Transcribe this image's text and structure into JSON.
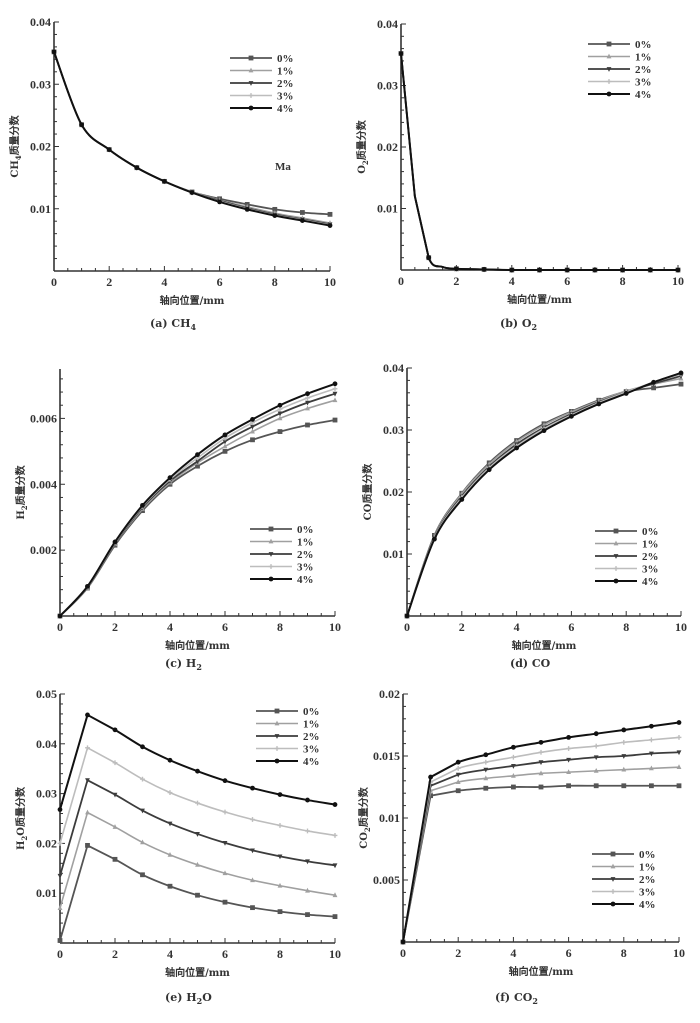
{
  "colors": {
    "0%": "#555555",
    "1%": "#a0a0a0",
    "2%": "#3c3c3c",
    "3%": "#bdbdbd",
    "4%": "#111111",
    "axis": "#333333"
  },
  "chart_data": [
    {
      "id": "a",
      "type": "line",
      "caption": "(a) CH",
      "caption_sub": "4",
      "xlabel": "轴向位置/mm",
      "ylabel_pre": "CH",
      "ylabel_sub": "4",
      "ylabel_post": "质量分数",
      "xlim": [
        0,
        10
      ],
      "ylim": [
        0,
        0.04
      ],
      "xticks": [
        "0",
        "2",
        "4",
        "6",
        "8",
        "10"
      ],
      "yticks": [
        "0.01",
        "0.02",
        "0.03",
        "0.04"
      ],
      "ytick_values": [
        0.01,
        0.02,
        0.03,
        0.04
      ],
      "legend": [
        "0%",
        "1%",
        "2%",
        "3%",
        "4%"
      ],
      "legend_position": "top-right",
      "annotation": "Ma",
      "x": [
        0,
        1,
        2,
        3,
        4,
        5,
        6,
        7,
        8,
        9,
        10
      ],
      "series": [
        {
          "name": "0%",
          "values": [
            0.0352,
            0.0235,
            0.0195,
            0.0166,
            0.0144,
            0.0127,
            0.0116,
            0.0107,
            0.0099,
            0.0094,
            0.0091
          ]
        },
        {
          "name": "1%",
          "values": [
            0.0352,
            0.0235,
            0.0195,
            0.0166,
            0.0144,
            0.0127,
            0.0114,
            0.0103,
            0.0093,
            0.0085,
            0.0077
          ]
        },
        {
          "name": "2%",
          "values": [
            0.0352,
            0.0235,
            0.0195,
            0.0166,
            0.0144,
            0.0126,
            0.0113,
            0.0101,
            0.0091,
            0.0083,
            0.0075
          ]
        },
        {
          "name": "3%",
          "values": [
            0.0352,
            0.0235,
            0.0195,
            0.0166,
            0.0144,
            0.0126,
            0.0112,
            0.01,
            0.009,
            0.0082,
            0.0074
          ]
        },
        {
          "name": "4%",
          "values": [
            0.0352,
            0.0235,
            0.0195,
            0.0166,
            0.0144,
            0.0126,
            0.0111,
            0.0099,
            0.0089,
            0.0081,
            0.0073
          ]
        }
      ]
    },
    {
      "id": "b",
      "type": "line",
      "caption": "(b) O",
      "caption_sub": "2",
      "xlabel": "轴向位置/mm",
      "ylabel_pre": "O",
      "ylabel_sub": "2",
      "ylabel_post": "质量分数",
      "xlim": [
        0,
        10
      ],
      "ylim": [
        0,
        0.04
      ],
      "xticks": [
        "0",
        "2",
        "4",
        "6",
        "8",
        "10"
      ],
      "yticks": [
        "0.01",
        "0.02",
        "0.03",
        "0.04"
      ],
      "ytick_values": [
        0.01,
        0.02,
        0.03,
        0.04
      ],
      "legend": [
        "0%",
        "1%",
        "2%",
        "3%",
        "4%"
      ],
      "legend_position": "top-right",
      "x": [
        0,
        0.5,
        1,
        1.5,
        2,
        3,
        4,
        5,
        6,
        7,
        8,
        9,
        10
      ],
      "series": [
        {
          "name": "0%",
          "values": [
            0.0352,
            0.012,
            0.002,
            0.0005,
            0.0002,
            0.0001,
            0,
            0,
            0,
            0,
            0,
            0,
            0
          ]
        },
        {
          "name": "1%",
          "values": [
            0.0352,
            0.012,
            0.002,
            0.0005,
            0.0002,
            0.0001,
            0,
            0,
            0,
            0,
            0,
            0,
            0
          ]
        },
        {
          "name": "2%",
          "values": [
            0.0352,
            0.012,
            0.002,
            0.0005,
            0.0002,
            0.0001,
            0,
            0,
            0,
            0,
            0,
            0,
            0
          ]
        },
        {
          "name": "3%",
          "values": [
            0.0352,
            0.012,
            0.002,
            0.0005,
            0.0002,
            0.0001,
            0,
            0,
            0,
            0,
            0,
            0,
            0
          ]
        },
        {
          "name": "4%",
          "values": [
            0.0352,
            0.012,
            0.002,
            0.0005,
            0.0002,
            0.0001,
            0,
            0,
            0,
            0,
            0,
            0,
            0
          ]
        }
      ]
    },
    {
      "id": "c",
      "type": "line",
      "caption": "(c) H",
      "caption_sub": "2",
      "xlabel": "轴向位置/mm",
      "ylabel_pre": "H",
      "ylabel_sub": "2",
      "ylabel_post": "质量分数",
      "xlim": [
        0,
        10
      ],
      "ylim": [
        0,
        0.0075
      ],
      "xticks": [
        "0",
        "2",
        "4",
        "6",
        "8",
        "10"
      ],
      "yticks": [
        "0.002",
        "0.004",
        "0.006"
      ],
      "ytick_values": [
        0.002,
        0.004,
        0.006
      ],
      "legend": [
        "0%",
        "1%",
        "2%",
        "3%",
        "4%"
      ],
      "legend_position": "lower-right",
      "x": [
        0,
        1,
        2,
        3,
        4,
        5,
        6,
        7,
        8,
        9,
        10
      ],
      "series": [
        {
          "name": "0%",
          "values": [
            0,
            0.00085,
            0.00215,
            0.0032,
            0.004,
            0.00455,
            0.005,
            0.00535,
            0.0056,
            0.0058,
            0.00595
          ]
        },
        {
          "name": "1%",
          "values": [
            0,
            0.00085,
            0.00218,
            0.00325,
            0.00405,
            0.00465,
            0.00515,
            0.0056,
            0.006,
            0.0063,
            0.00655
          ]
        },
        {
          "name": "2%",
          "values": [
            0,
            0.00087,
            0.0022,
            0.0033,
            0.0041,
            0.0047,
            0.0053,
            0.00575,
            0.00615,
            0.00648,
            0.00675
          ]
        },
        {
          "name": "3%",
          "values": [
            0,
            0.00088,
            0.00222,
            0.00333,
            0.00415,
            0.0048,
            0.0054,
            0.00587,
            0.00628,
            0.00662,
            0.0069
          ]
        },
        {
          "name": "4%",
          "values": [
            0,
            0.0009,
            0.00225,
            0.00336,
            0.0042,
            0.0049,
            0.0055,
            0.00597,
            0.0064,
            0.00675,
            0.00705
          ]
        }
      ]
    },
    {
      "id": "d",
      "type": "line",
      "caption": "(d) CO",
      "caption_sub": "",
      "xlabel": "轴向位置/mm",
      "ylabel_pre": "CO",
      "ylabel_sub": "",
      "ylabel_post": "质量分数",
      "xlim": [
        0,
        10
      ],
      "ylim": [
        0,
        0.04
      ],
      "xticks": [
        "0",
        "2",
        "4",
        "6",
        "8",
        "10"
      ],
      "yticks": [
        "0.01",
        "0.02",
        "0.03",
        "0.04"
      ],
      "ytick_values": [
        0.01,
        0.02,
        0.03,
        0.04
      ],
      "legend": [
        "0%",
        "1%",
        "2%",
        "3%",
        "4%"
      ],
      "legend_position": "lower-right",
      "x": [
        0,
        1,
        2,
        3,
        4,
        5,
        6,
        7,
        8,
        9,
        10
      ],
      "series": [
        {
          "name": "0%",
          "values": [
            0,
            0.013,
            0.0198,
            0.0247,
            0.0283,
            0.031,
            0.033,
            0.0348,
            0.0362,
            0.0368,
            0.0374
          ]
        },
        {
          "name": "1%",
          "values": [
            0,
            0.0129,
            0.0197,
            0.0245,
            0.0281,
            0.0308,
            0.0329,
            0.0347,
            0.0363,
            0.0374,
            0.0383
          ]
        },
        {
          "name": "2%",
          "values": [
            0,
            0.0127,
            0.0193,
            0.0241,
            0.0277,
            0.0304,
            0.0326,
            0.0345,
            0.0361,
            0.0375,
            0.0387
          ]
        },
        {
          "name": "3%",
          "values": [
            0,
            0.0126,
            0.0191,
            0.0239,
            0.0274,
            0.0302,
            0.0324,
            0.0344,
            0.0361,
            0.0377,
            0.039
          ]
        },
        {
          "name": "4%",
          "values": [
            0,
            0.0124,
            0.0188,
            0.0236,
            0.0271,
            0.0299,
            0.0322,
            0.0342,
            0.0359,
            0.0377,
            0.0392
          ]
        }
      ]
    },
    {
      "id": "e",
      "type": "line",
      "caption": "(e) H",
      "caption_sub": "2",
      "caption_post": "O",
      "xlabel": "轴向位置/mm",
      "ylabel_pre": "H",
      "ylabel_sub": "2",
      "ylabel_post": "O质量分数",
      "xlim": [
        0,
        10
      ],
      "ylim": [
        0,
        0.05
      ],
      "xticks": [
        "0",
        "2",
        "4",
        "6",
        "8",
        "10"
      ],
      "yticks": [
        "0.01",
        "0.02",
        "0.03",
        "0.04",
        "0.05"
      ],
      "ytick_values": [
        0.01,
        0.02,
        0.03,
        0.04,
        0.05
      ],
      "legend": [
        "0%",
        "1%",
        "2%",
        "3%",
        "4%"
      ],
      "legend_position": "top-right",
      "x": [
        0,
        1,
        2,
        3,
        4,
        5,
        6,
        7,
        8,
        9,
        10
      ],
      "series": [
        {
          "name": "0%",
          "values": [
            0.0005,
            0.0196,
            0.0168,
            0.0137,
            0.0114,
            0.0096,
            0.0082,
            0.0071,
            0.0063,
            0.0057,
            0.0053
          ]
        },
        {
          "name": "1%",
          "values": [
            0.007,
            0.0262,
            0.0233,
            0.0202,
            0.0177,
            0.0157,
            0.014,
            0.0126,
            0.0115,
            0.0105,
            0.0096
          ]
        },
        {
          "name": "2%",
          "values": [
            0.0135,
            0.0327,
            0.0298,
            0.0266,
            0.024,
            0.0219,
            0.0201,
            0.0186,
            0.0174,
            0.0164,
            0.0156
          ]
        },
        {
          "name": "3%",
          "values": [
            0.02,
            0.0392,
            0.0362,
            0.0329,
            0.0302,
            0.0281,
            0.0263,
            0.0248,
            0.0236,
            0.0225,
            0.0216
          ]
        },
        {
          "name": "4%",
          "values": [
            0.0268,
            0.0458,
            0.0428,
            0.0394,
            0.0367,
            0.0345,
            0.0326,
            0.0311,
            0.0298,
            0.0287,
            0.0278
          ]
        }
      ]
    },
    {
      "id": "f",
      "type": "line",
      "caption": "(f) CO",
      "caption_sub": "2",
      "xlabel": "轴向位置/mm",
      "ylabel_pre": "CO",
      "ylabel_sub": "2",
      "ylabel_post": "质量分数",
      "xlim": [
        0,
        10
      ],
      "ylim": [
        0,
        0.02
      ],
      "xticks": [
        "0",
        "2",
        "4",
        "6",
        "8",
        "10"
      ],
      "yticks": [
        "0.005",
        "0.01",
        "0.015",
        "0.02"
      ],
      "ytick_values": [
        0.005,
        0.01,
        0.015,
        0.02
      ],
      "legend": [
        "0%",
        "1%",
        "2%",
        "3%",
        "4%"
      ],
      "legend_position": "lower-right",
      "x": [
        0,
        1,
        2,
        3,
        4,
        5,
        6,
        7,
        8,
        9,
        10
      ],
      "series": [
        {
          "name": "0%",
          "values": [
            0,
            0.0118,
            0.0122,
            0.0124,
            0.0125,
            0.0125,
            0.0126,
            0.0126,
            0.0126,
            0.0126,
            0.0126
          ]
        },
        {
          "name": "1%",
          "values": [
            0,
            0.0122,
            0.0129,
            0.0132,
            0.0134,
            0.0136,
            0.0137,
            0.0138,
            0.0139,
            0.014,
            0.0141
          ]
        },
        {
          "name": "2%",
          "values": [
            0,
            0.0126,
            0.0135,
            0.0139,
            0.0142,
            0.0145,
            0.0147,
            0.0149,
            0.015,
            0.0152,
            0.0153
          ]
        },
        {
          "name": "3%",
          "values": [
            0,
            0.0129,
            0.014,
            0.0145,
            0.0149,
            0.0153,
            0.0156,
            0.0158,
            0.0161,
            0.0163,
            0.0165
          ]
        },
        {
          "name": "4%",
          "values": [
            0,
            0.0133,
            0.0145,
            0.0151,
            0.0157,
            0.0161,
            0.0165,
            0.0168,
            0.0171,
            0.0174,
            0.0177
          ]
        }
      ]
    }
  ]
}
